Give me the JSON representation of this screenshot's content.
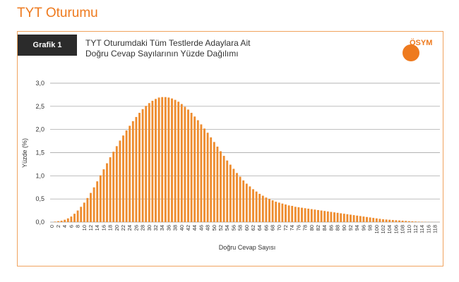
{
  "page_title": "TYT Oturumu",
  "badge": "Grafik 1",
  "title_line1": "TYT Oturumdaki Tüm Testlerde Adaylara Ait",
  "title_line2": "Doğru Cevap Sayılarının Yüzde Dağılımı",
  "logo_text": "ÖSYM",
  "colors": {
    "accent": "#ee7a1e",
    "bar": "#ee8c2e",
    "grid": "#9a9a9a"
  },
  "chart_data": {
    "type": "bar",
    "xlabel": "Doğru Cevap Sayısı",
    "ylabel": "Yüzde (%)",
    "ylim": [
      0,
      3.0
    ],
    "yticks": [
      "0,0",
      "0,5",
      "1,0",
      "1,5",
      "2,0",
      "2,5",
      "3,0"
    ],
    "x_start": 0,
    "x_end": 120,
    "x_tick_step": 2,
    "grid": true,
    "values": [
      0.0,
      0.01,
      0.02,
      0.03,
      0.05,
      0.08,
      0.12,
      0.18,
      0.25,
      0.33,
      0.42,
      0.52,
      0.63,
      0.75,
      0.88,
      1.01,
      1.14,
      1.27,
      1.4,
      1.52,
      1.64,
      1.76,
      1.87,
      1.98,
      2.08,
      2.18,
      2.27,
      2.36,
      2.44,
      2.51,
      2.57,
      2.62,
      2.66,
      2.69,
      2.7,
      2.7,
      2.69,
      2.67,
      2.64,
      2.6,
      2.55,
      2.49,
      2.43,
      2.36,
      2.28,
      2.2,
      2.11,
      2.02,
      1.93,
      1.83,
      1.73,
      1.63,
      1.53,
      1.43,
      1.33,
      1.24,
      1.15,
      1.06,
      0.98,
      0.9,
      0.83,
      0.77,
      0.71,
      0.66,
      0.61,
      0.57,
      0.53,
      0.5,
      0.47,
      0.44,
      0.42,
      0.4,
      0.38,
      0.36,
      0.35,
      0.33,
      0.32,
      0.31,
      0.3,
      0.29,
      0.28,
      0.27,
      0.26,
      0.25,
      0.24,
      0.23,
      0.22,
      0.21,
      0.2,
      0.19,
      0.18,
      0.17,
      0.16,
      0.15,
      0.14,
      0.13,
      0.12,
      0.11,
      0.1,
      0.09,
      0.08,
      0.07,
      0.06,
      0.055,
      0.05,
      0.045,
      0.04,
      0.035,
      0.03,
      0.025,
      0.02,
      0.016,
      0.012,
      0.009,
      0.007,
      0.005,
      0.003,
      0.002,
      0.001,
      0.001
    ]
  }
}
